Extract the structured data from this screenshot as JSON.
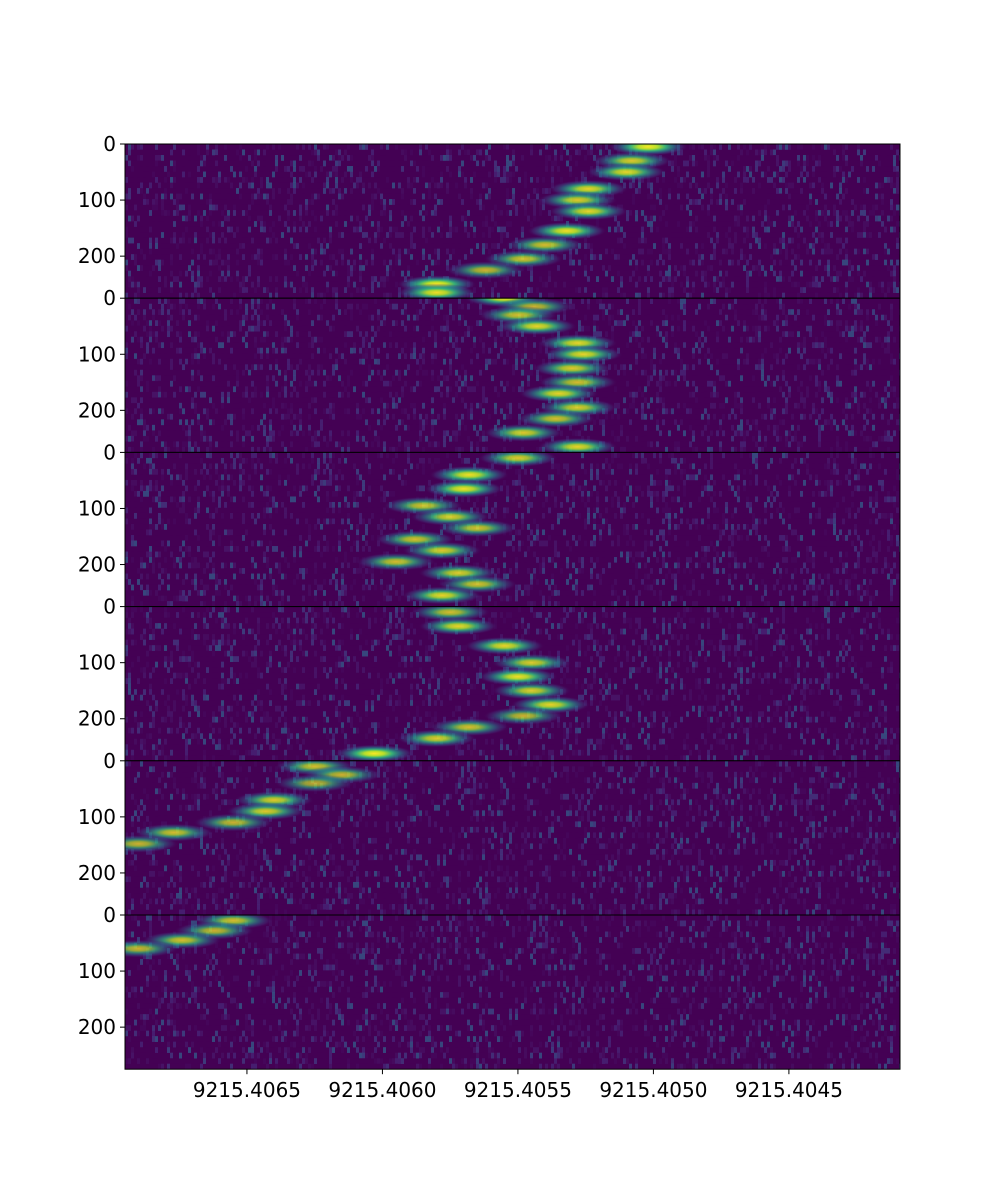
{
  "chart_data": {
    "type": "heatmap",
    "title": "",
    "xlabel": "",
    "ylabel": "",
    "colormap": "viridis",
    "x_ticks": [
      "9215.4065",
      "9215.4060",
      "9215.4055",
      "9215.4050",
      "9215.4045"
    ],
    "x_tick_values": [
      9215.4065,
      9215.406,
      9215.4055,
      9215.405,
      9215.4045
    ],
    "xlim": [
      9215.40695,
      9215.40409
    ],
    "panels": [
      {
        "y_ticks": [
          "0",
          "100",
          "200"
        ],
        "y_tick_values": [
          0,
          100,
          200
        ],
        "ylim": [
          0,
          275
        ],
        "trace": [
          {
            "y": 5,
            "x": 9215.40502,
            "intensity": 1.0
          },
          {
            "y": 30,
            "x": 9215.40508,
            "intensity": 0.85
          },
          {
            "y": 50,
            "x": 9215.4051,
            "intensity": 0.9
          },
          {
            "y": 80,
            "x": 9215.40524,
            "intensity": 0.9
          },
          {
            "y": 100,
            "x": 9215.40528,
            "intensity": 0.85
          },
          {
            "y": 120,
            "x": 9215.40524,
            "intensity": 0.9
          },
          {
            "y": 155,
            "x": 9215.40532,
            "intensity": 0.95
          },
          {
            "y": 180,
            "x": 9215.4054,
            "intensity": 0.8
          },
          {
            "y": 205,
            "x": 9215.40548,
            "intensity": 0.8
          },
          {
            "y": 225,
            "x": 9215.40562,
            "intensity": 0.75
          },
          {
            "y": 250,
            "x": 9215.4058,
            "intensity": 1.0
          },
          {
            "y": 265,
            "x": 9215.4058,
            "intensity": 0.95
          }
        ]
      },
      {
        "y_ticks": [
          "0",
          "100",
          "200"
        ],
        "y_tick_values": [
          0,
          100,
          200
        ],
        "ylim": [
          0,
          275
        ],
        "trace": [
          {
            "y": 0,
            "x": 9215.40555,
            "intensity": 0.95
          },
          {
            "y": 15,
            "x": 9215.40544,
            "intensity": 0.75
          },
          {
            "y": 30,
            "x": 9215.4055,
            "intensity": 0.8
          },
          {
            "y": 50,
            "x": 9215.40543,
            "intensity": 0.9
          },
          {
            "y": 80,
            "x": 9215.40528,
            "intensity": 0.9
          },
          {
            "y": 100,
            "x": 9215.40526,
            "intensity": 0.9
          },
          {
            "y": 125,
            "x": 9215.4053,
            "intensity": 0.85
          },
          {
            "y": 150,
            "x": 9215.40528,
            "intensity": 0.8
          },
          {
            "y": 170,
            "x": 9215.40535,
            "intensity": 0.9
          },
          {
            "y": 195,
            "x": 9215.40528,
            "intensity": 0.85
          },
          {
            "y": 215,
            "x": 9215.40536,
            "intensity": 0.8
          },
          {
            "y": 240,
            "x": 9215.40548,
            "intensity": 0.85
          },
          {
            "y": 265,
            "x": 9215.40528,
            "intensity": 0.9
          }
        ]
      },
      {
        "y_ticks": [
          "0",
          "100",
          "200"
        ],
        "y_tick_values": [
          0,
          100,
          200
        ],
        "ylim": [
          0,
          275
        ],
        "trace": [
          {
            "y": 10,
            "x": 9215.4055,
            "intensity": 0.85
          },
          {
            "y": 40,
            "x": 9215.40568,
            "intensity": 0.95
          },
          {
            "y": 65,
            "x": 9215.4057,
            "intensity": 0.95
          },
          {
            "y": 95,
            "x": 9215.40585,
            "intensity": 0.8
          },
          {
            "y": 115,
            "x": 9215.40575,
            "intensity": 0.85
          },
          {
            "y": 135,
            "x": 9215.40565,
            "intensity": 0.8
          },
          {
            "y": 155,
            "x": 9215.40588,
            "intensity": 0.8
          },
          {
            "y": 175,
            "x": 9215.40578,
            "intensity": 0.85
          },
          {
            "y": 195,
            "x": 9215.40595,
            "intensity": 0.8
          },
          {
            "y": 215,
            "x": 9215.40572,
            "intensity": 0.85
          },
          {
            "y": 235,
            "x": 9215.40565,
            "intensity": 0.8
          },
          {
            "y": 255,
            "x": 9215.40578,
            "intensity": 0.9
          }
        ]
      },
      {
        "y_ticks": [
          "0",
          "100",
          "200"
        ],
        "y_tick_values": [
          0,
          100,
          200
        ],
        "ylim": [
          0,
          275
        ],
        "trace": [
          {
            "y": 10,
            "x": 9215.40575,
            "intensity": 0.8
          },
          {
            "y": 35,
            "x": 9215.40572,
            "intensity": 0.9
          },
          {
            "y": 70,
            "x": 9215.40555,
            "intensity": 0.9
          },
          {
            "y": 100,
            "x": 9215.40545,
            "intensity": 0.85
          },
          {
            "y": 125,
            "x": 9215.4055,
            "intensity": 0.95
          },
          {
            "y": 150,
            "x": 9215.40545,
            "intensity": 0.85
          },
          {
            "y": 175,
            "x": 9215.40538,
            "intensity": 0.9
          },
          {
            "y": 195,
            "x": 9215.40548,
            "intensity": 0.75
          },
          {
            "y": 215,
            "x": 9215.40568,
            "intensity": 0.8
          },
          {
            "y": 235,
            "x": 9215.4058,
            "intensity": 0.85
          },
          {
            "y": 262,
            "x": 9215.40603,
            "intensity": 1.0
          }
        ]
      },
      {
        "y_ticks": [
          "0",
          "100",
          "200"
        ],
        "y_tick_values": [
          0,
          100,
          200
        ],
        "ylim": [
          0,
          275
        ],
        "trace": [
          {
            "y": 10,
            "x": 9215.40625,
            "intensity": 0.8
          },
          {
            "y": 25,
            "x": 9215.40615,
            "intensity": 0.75
          },
          {
            "y": 40,
            "x": 9215.40625,
            "intensity": 0.7
          },
          {
            "y": 70,
            "x": 9215.4064,
            "intensity": 0.85
          },
          {
            "y": 90,
            "x": 9215.40643,
            "intensity": 0.85
          },
          {
            "y": 110,
            "x": 9215.40655,
            "intensity": 0.75
          },
          {
            "y": 128,
            "x": 9215.40677,
            "intensity": 0.8
          },
          {
            "y": 148,
            "x": 9215.4069,
            "intensity": 0.75
          }
        ]
      },
      {
        "y_ticks": [
          "0",
          "100",
          "200"
        ],
        "y_tick_values": [
          0,
          100,
          200
        ],
        "ylim": [
          0,
          275
        ],
        "trace": [
          {
            "y": 10,
            "x": 9215.40655,
            "intensity": 0.8
          },
          {
            "y": 28,
            "x": 9215.40662,
            "intensity": 0.75
          },
          {
            "y": 45,
            "x": 9215.40674,
            "intensity": 0.8
          },
          {
            "y": 60,
            "x": 9215.4069,
            "intensity": 0.75
          }
        ]
      }
    ],
    "grid": false,
    "legend": "none",
    "background_color": "#440154"
  }
}
